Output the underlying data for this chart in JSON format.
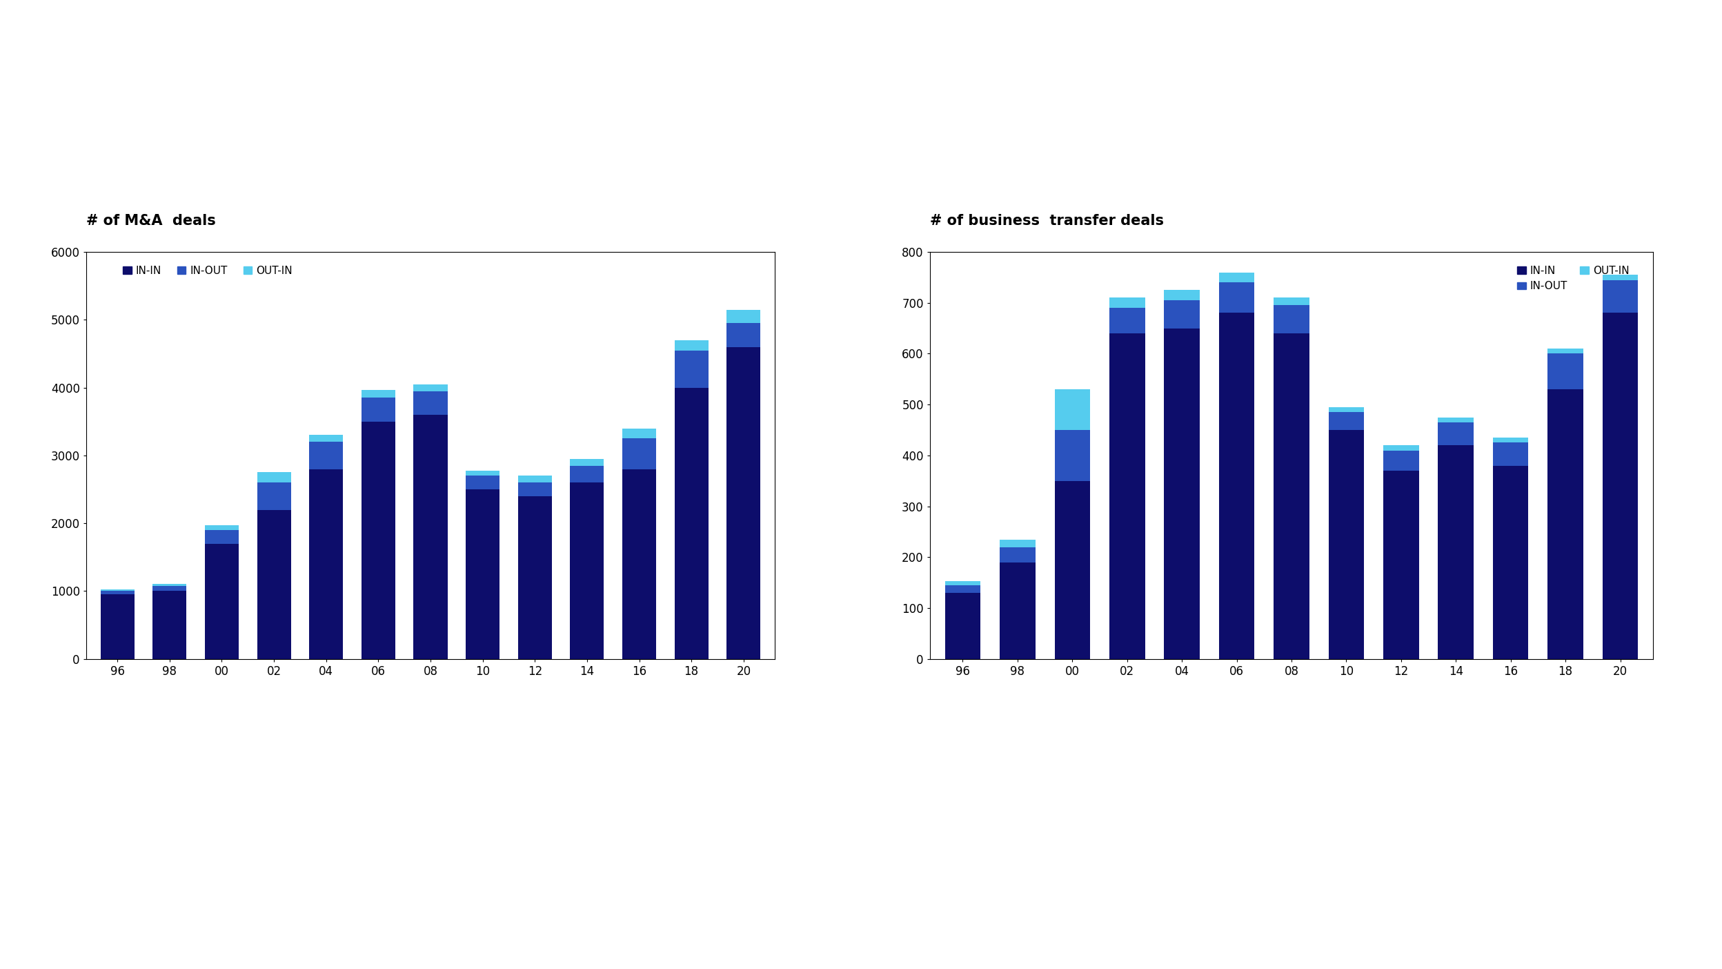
{
  "chart1_title": "# of M&A  deals",
  "chart2_title": "# of business  transfer deals",
  "years": [
    "96",
    "98",
    "00",
    "02",
    "04",
    "06",
    "08",
    "10",
    "12",
    "14",
    "16",
    "18",
    "20"
  ],
  "ma_in_in": [
    950,
    1000,
    1700,
    2200,
    2800,
    3500,
    3600,
    2500,
    2400,
    2600,
    2800,
    4000,
    4600
  ],
  "ma_in_out": [
    50,
    80,
    200,
    400,
    400,
    350,
    350,
    200,
    200,
    250,
    450,
    550,
    350
  ],
  "ma_out_in": [
    20,
    30,
    70,
    150,
    100,
    120,
    100,
    80,
    100,
    100,
    150,
    150,
    200
  ],
  "bt_in_in": [
    130,
    190,
    350,
    640,
    650,
    680,
    640,
    450,
    370,
    420,
    380,
    530,
    680
  ],
  "bt_in_out": [
    15,
    30,
    100,
    50,
    55,
    60,
    55,
    35,
    40,
    45,
    45,
    70,
    65
  ],
  "bt_out_in": [
    8,
    15,
    80,
    20,
    20,
    20,
    15,
    10,
    10,
    10,
    10,
    10,
    10
  ],
  "color_in_in": "#0d0d6b",
  "color_in_out": "#2a52be",
  "color_out_in": "#55ccee",
  "ma_ylim": [
    0,
    6000
  ],
  "ma_yticks": [
    0,
    1000,
    2000,
    3000,
    4000,
    5000,
    6000
  ],
  "bt_ylim": [
    0,
    800
  ],
  "bt_yticks": [
    0,
    100,
    200,
    300,
    400,
    500,
    600,
    700,
    800
  ],
  "background_color": "#ffffff"
}
